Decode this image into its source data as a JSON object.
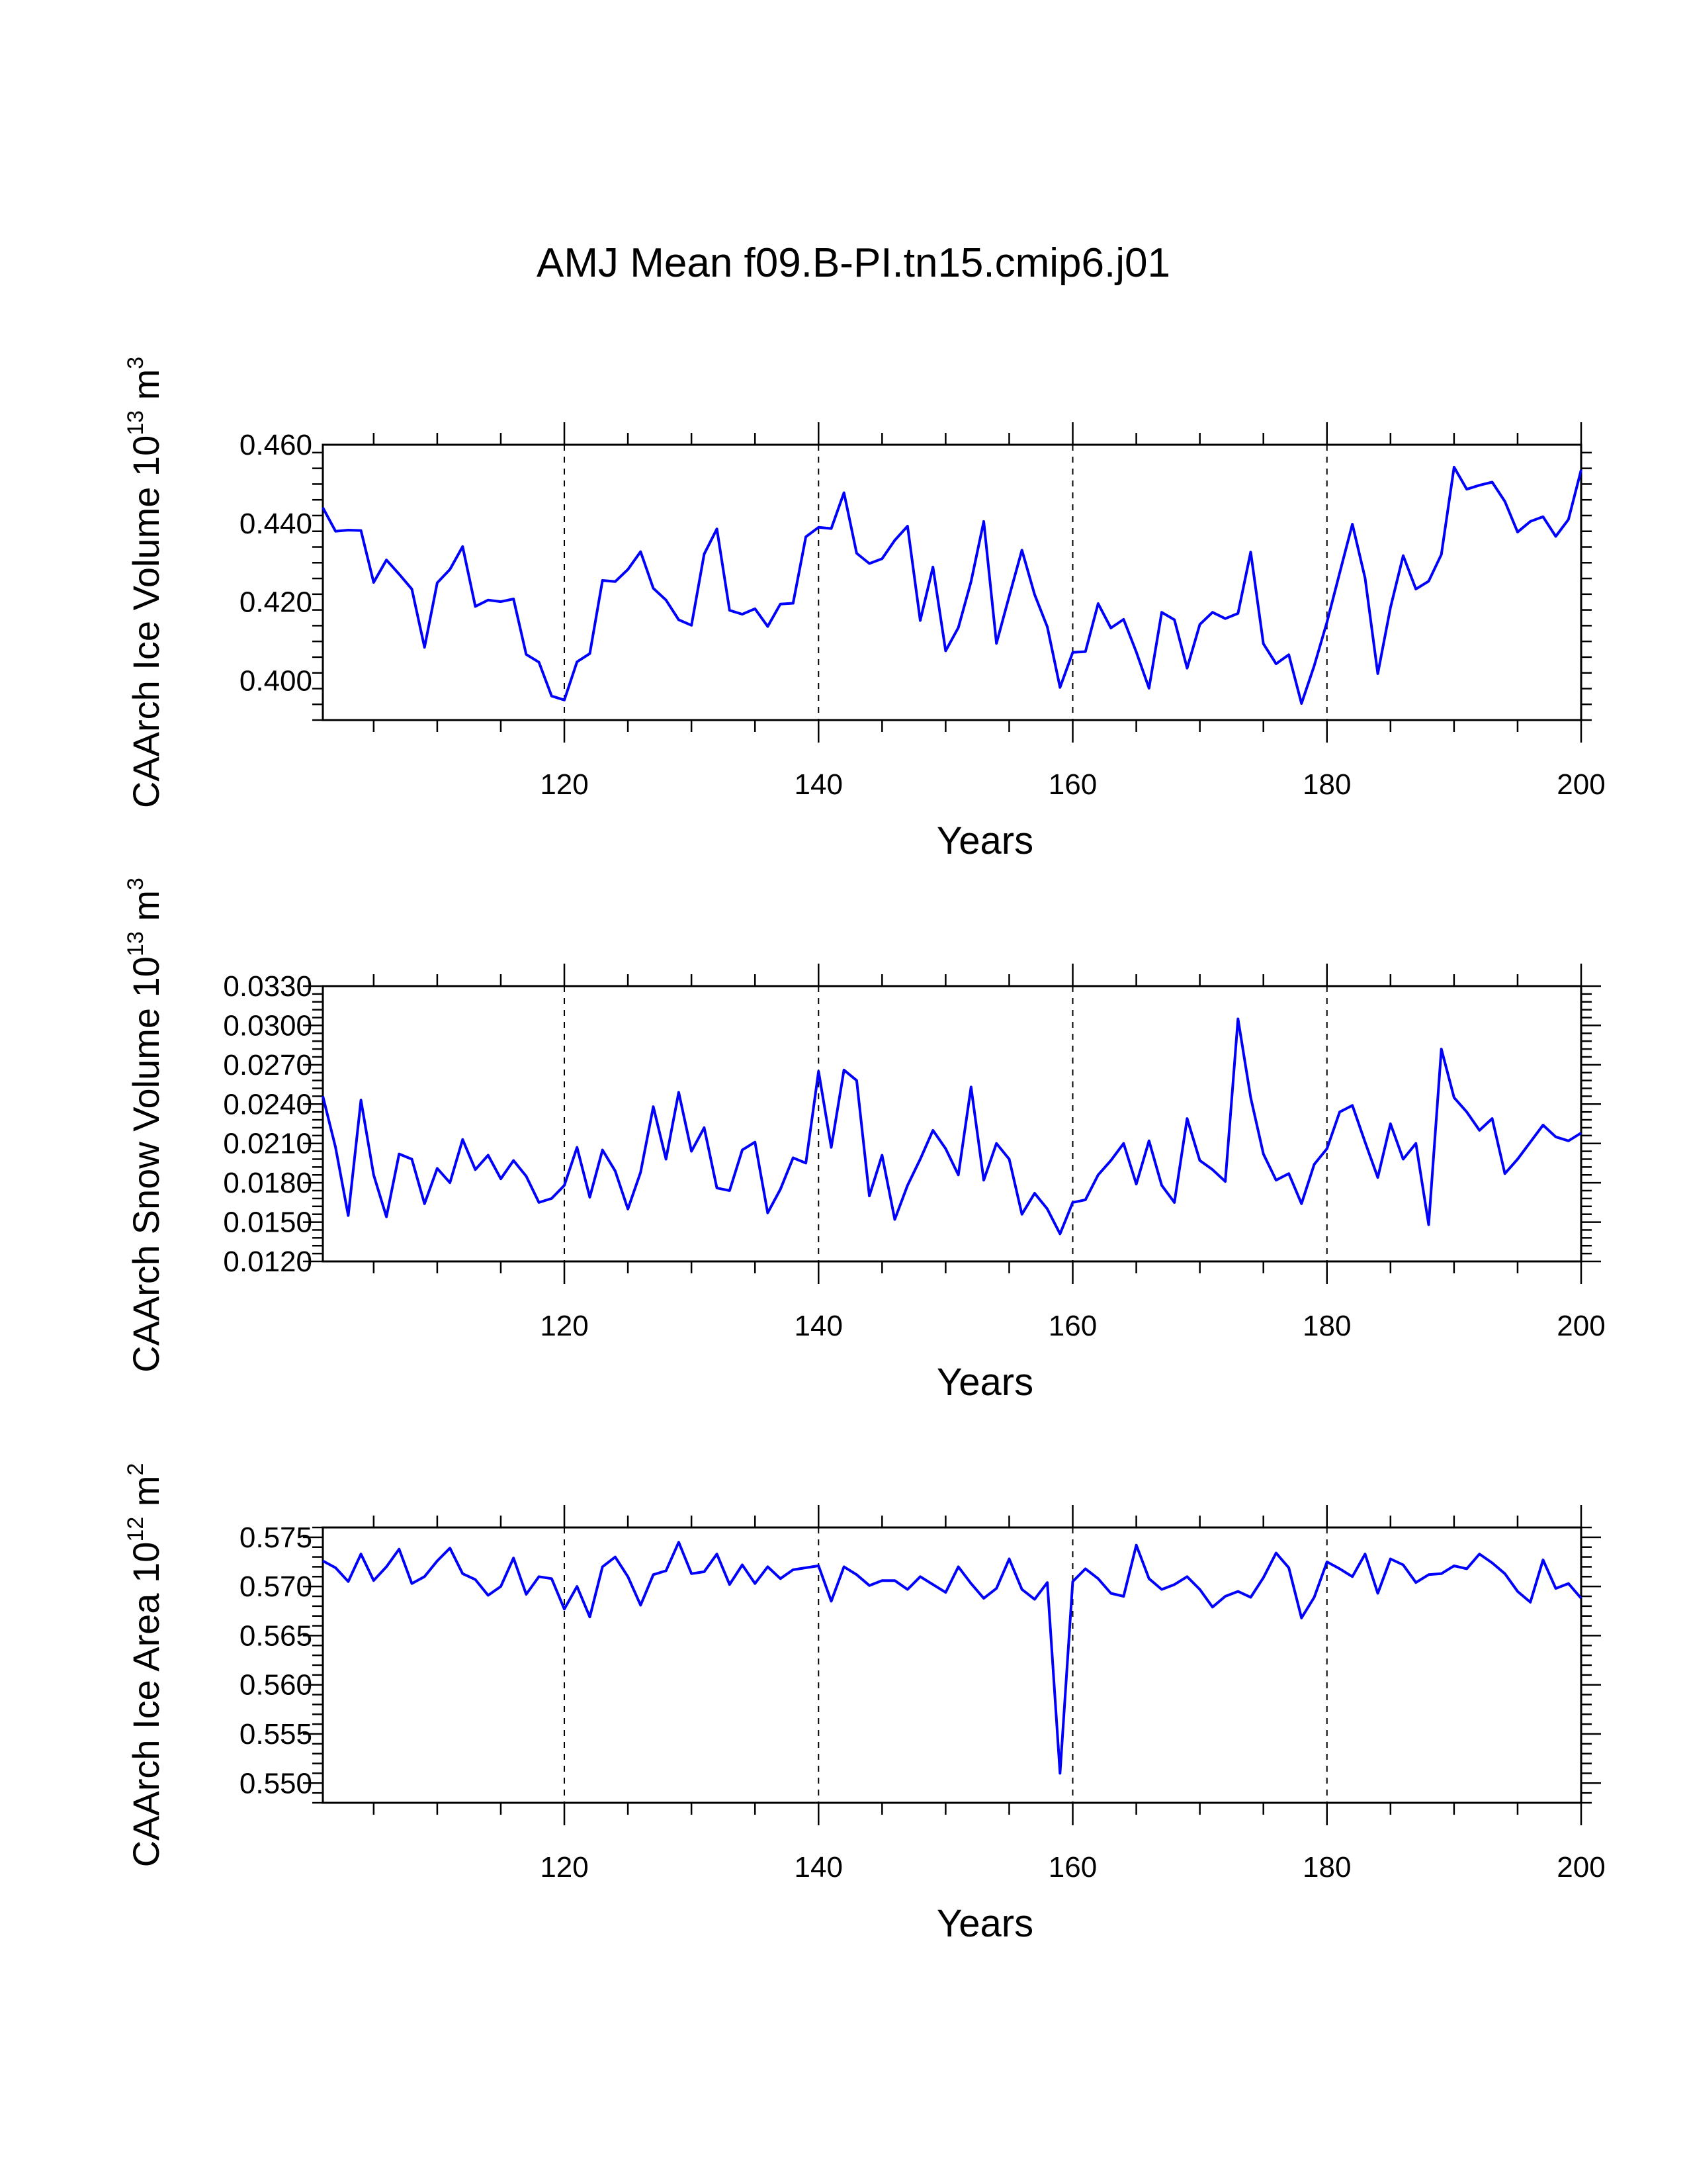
{
  "figure": {
    "title": "AMJ Mean f09.B-PI.tn15.cmip6.j01"
  },
  "chart_data": [
    {
      "type": "line",
      "ylabel": "CAArch Ice Volume 10",
      "ylabel_exp": "13",
      "ylabel_unit": "m",
      "ylabel_unit_exp": "3",
      "xlabel": "Years",
      "xlim": [
        101,
        200
      ],
      "ylim": [
        0.39,
        0.46
      ],
      "yticks": [
        0.4,
        0.42,
        0.44,
        0.46
      ],
      "ytick_labels": [
        "0.400",
        "0.420",
        "0.440",
        "0.460"
      ],
      "xticks": [
        120,
        140,
        160,
        180,
        200
      ],
      "xtick_labels": [
        "120",
        "140",
        "160",
        "180",
        "200"
      ],
      "grid_x": [
        120,
        140,
        160,
        180
      ],
      "series": [
        {
          "name": "CAArch Ice Volume",
          "color": "#0000ff",
          "x_start": 101,
          "values": [
            0.444,
            0.438,
            0.4383,
            0.4382,
            0.425,
            0.4307,
            0.4271,
            0.4233,
            0.4085,
            0.4249,
            0.4283,
            0.4341,
            0.4189,
            0.4205,
            0.4201,
            0.4208,
            0.4067,
            0.4047,
            0.3961,
            0.3951,
            0.4048,
            0.4069,
            0.4255,
            0.4252,
            0.4283,
            0.4328,
            0.4235,
            0.4205,
            0.4155,
            0.4141,
            0.4322,
            0.4386,
            0.4179,
            0.4169,
            0.4183,
            0.4138,
            0.4195,
            0.4197,
            0.4366,
            0.439,
            0.4387,
            0.4478,
            0.4324,
            0.4298,
            0.431,
            0.4357,
            0.4393,
            0.4153,
            0.4289,
            0.4076,
            0.4135,
            0.4252,
            0.4405,
            0.4095,
            0.4215,
            0.4332,
            0.4219,
            0.4137,
            0.3983,
            0.4072,
            0.4074,
            0.4196,
            0.4134,
            0.4156,
            0.4073,
            0.3981,
            0.4174,
            0.4155,
            0.4032,
            0.4143,
            0.4174,
            0.4158,
            0.4171,
            0.4327,
            0.4094,
            0.4043,
            0.4066,
            0.3942,
            0.4038,
            0.4149,
            0.4274,
            0.4398,
            0.4261,
            0.4018,
            0.4186,
            0.4318,
            0.4233,
            0.4253,
            0.4321,
            0.4543,
            0.4487,
            0.4497,
            0.4505,
            0.4456,
            0.4378,
            0.4405,
            0.4417,
            0.4367,
            0.441,
            0.4536
          ]
        }
      ]
    },
    {
      "type": "line",
      "ylabel": "CAArch Snow Volume 10",
      "ylabel_exp": "13",
      "ylabel_unit": "m",
      "ylabel_unit_exp": "3",
      "xlabel": "Years",
      "xlim": [
        101,
        200
      ],
      "ylim": [
        0.012,
        0.033
      ],
      "yticks": [
        0.012,
        0.015,
        0.018,
        0.021,
        0.024,
        0.027,
        0.03,
        0.033
      ],
      "ytick_labels": [
        "0.0120",
        "0.0150",
        "0.0180",
        "0.0210",
        "0.0240",
        "0.0270",
        "0.0300",
        "0.0330"
      ],
      "xticks": [
        120,
        140,
        160,
        180,
        200
      ],
      "xtick_labels": [
        "120",
        "140",
        "160",
        "180",
        "200"
      ],
      "grid_x": [
        120,
        140,
        160,
        180
      ],
      "series": [
        {
          "name": "CAArch Snow Volume",
          "color": "#0000ff",
          "x_start": 101,
          "values": [
            0.0246,
            0.0207,
            0.0155,
            0.0243,
            0.0186,
            0.0154,
            0.0202,
            0.0198,
            0.0164,
            0.0191,
            0.018,
            0.0213,
            0.019,
            0.0201,
            0.0183,
            0.0197,
            0.0185,
            0.0165,
            0.0168,
            0.0178,
            0.0207,
            0.0169,
            0.0205,
            0.0189,
            0.016,
            0.0188,
            0.0238,
            0.0198,
            0.0249,
            0.0204,
            0.0222,
            0.0176,
            0.0174,
            0.0205,
            0.0211,
            0.0157,
            0.0175,
            0.0199,
            0.0195,
            0.0265,
            0.0207,
            0.0266,
            0.0258,
            0.017,
            0.0201,
            0.0152,
            0.0178,
            0.0198,
            0.022,
            0.0206,
            0.0186,
            0.0253,
            0.0182,
            0.021,
            0.0198,
            0.0156,
            0.0172,
            0.016,
            0.0141,
            0.0165,
            0.0167,
            0.0186,
            0.0197,
            0.021,
            0.0179,
            0.0212,
            0.0178,
            0.0165,
            0.0229,
            0.0197,
            0.019,
            0.0181,
            0.0305,
            0.0245,
            0.0202,
            0.0182,
            0.0187,
            0.0164,
            0.0194,
            0.0206,
            0.0234,
            0.0239,
            0.0211,
            0.0184,
            0.0225,
            0.0198,
            0.021,
            0.0148,
            0.0282,
            0.0245,
            0.0234,
            0.022,
            0.0229,
            0.0187,
            0.0198,
            0.0211,
            0.0224,
            0.0215,
            0.0212,
            0.0218
          ]
        }
      ]
    },
    {
      "type": "line",
      "ylabel": "CAArch Ice Area 10",
      "ylabel_exp": "12",
      "ylabel_unit": "m",
      "ylabel_unit_exp": "2",
      "xlabel": "Years",
      "xlim": [
        101,
        200
      ],
      "ylim": [
        0.548,
        0.576
      ],
      "yticks": [
        0.55,
        0.555,
        0.56,
        0.565,
        0.57,
        0.575
      ],
      "ytick_labels": [
        "0.550",
        "0.555",
        "0.560",
        "0.565",
        "0.570",
        "0.575"
      ],
      "xticks": [
        120,
        140,
        160,
        180,
        200
      ],
      "xtick_labels": [
        "120",
        "140",
        "160",
        "180",
        "200"
      ],
      "grid_x": [
        120,
        140,
        160,
        180
      ],
      "series": [
        {
          "name": "CAArch Ice Area",
          "color": "#0000ff",
          "x_start": 101,
          "values": [
            0.5726,
            0.5719,
            0.5705,
            0.5733,
            0.5706,
            0.572,
            0.5738,
            0.5703,
            0.571,
            0.5726,
            0.5739,
            0.5713,
            0.5707,
            0.5691,
            0.57,
            0.5729,
            0.5692,
            0.571,
            0.5708,
            0.5677,
            0.57,
            0.5669,
            0.572,
            0.573,
            0.571,
            0.5681,
            0.5712,
            0.5716,
            0.5745,
            0.5713,
            0.5715,
            0.5733,
            0.5702,
            0.5722,
            0.5703,
            0.572,
            0.5708,
            0.5717,
            0.5719,
            0.5721,
            0.5685,
            0.572,
            0.5712,
            0.5701,
            0.5706,
            0.5706,
            0.5697,
            0.571,
            0.5702,
            0.5694,
            0.572,
            0.5703,
            0.5688,
            0.5698,
            0.5728,
            0.5697,
            0.5687,
            0.5704,
            0.551,
            0.5705,
            0.5718,
            0.5708,
            0.5693,
            0.569,
            0.5742,
            0.5708,
            0.5697,
            0.5702,
            0.571,
            0.5697,
            0.5679,
            0.569,
            0.5695,
            0.5689,
            0.5709,
            0.5734,
            0.5719,
            0.5668,
            0.5689,
            0.5725,
            0.5718,
            0.571,
            0.5733,
            0.5693,
            0.5728,
            0.5722,
            0.5704,
            0.5712,
            0.5713,
            0.5721,
            0.5718,
            0.5733,
            0.5724,
            0.5713,
            0.5695,
            0.5684,
            0.5727,
            0.5698,
            0.5703,
            0.5688
          ]
        }
      ]
    }
  ]
}
